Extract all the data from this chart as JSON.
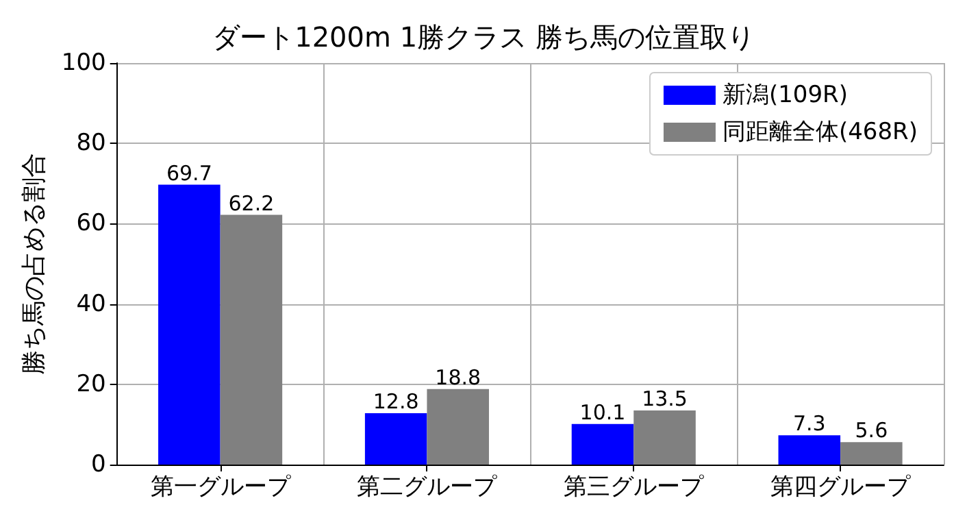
{
  "chart_data": {
    "type": "bar",
    "title": "ダート1200m 1勝クラス 勝ち馬の位置取り",
    "ylabel": "勝ち馬の占める割合",
    "categories": [
      "第一グループ",
      "第二グループ",
      "第三グループ",
      "第四グループ"
    ],
    "series": [
      {
        "name": "新潟(109R)",
        "color": "#0000ff",
        "values": [
          69.7,
          12.8,
          10.1,
          7.3
        ]
      },
      {
        "name": "同距離全体(468R)",
        "color": "#808080",
        "values": [
          62.2,
          18.8,
          13.5,
          5.6
        ]
      }
    ],
    "ylim": [
      0,
      100
    ],
    "yticks": [
      0,
      20,
      40,
      60,
      80,
      100
    ],
    "grid": true,
    "legend": "top right",
    "data_labels": true
  }
}
